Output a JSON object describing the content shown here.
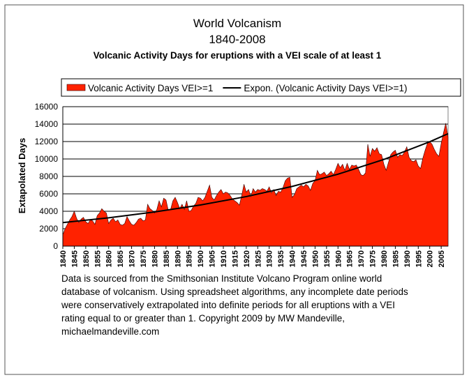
{
  "chart_data": {
    "type": "area",
    "title": "World Volcanism",
    "subtitle": "1840-2008",
    "subtitle2": "Volcanic Activity Days for eruptions with a VEI scale of at least 1",
    "y_label": "Extapolated Days",
    "note_lines": [
      "Data is sourced from the Smithsonian Institute Volcano Program online world",
      "database of volcanism.  Using spreadsheet algorithms, any incomplete date periods",
      "were conservatively extrapolated into definite periods for all eruptions with a VEI",
      "rating equal to or greater than 1. Copyright 2009 by MW Mandeville,",
      "michaelmandeville.com"
    ],
    "x": [
      1840,
      1841,
      1842,
      1843,
      1844,
      1845,
      1846,
      1847,
      1848,
      1849,
      1850,
      1851,
      1852,
      1853,
      1854,
      1855,
      1856,
      1857,
      1858,
      1859,
      1860,
      1861,
      1862,
      1863,
      1864,
      1865,
      1866,
      1867,
      1868,
      1869,
      1870,
      1871,
      1872,
      1873,
      1874,
      1875,
      1876,
      1877,
      1878,
      1879,
      1880,
      1881,
      1882,
      1883,
      1884,
      1885,
      1886,
      1887,
      1888,
      1889,
      1890,
      1891,
      1892,
      1893,
      1894,
      1895,
      1896,
      1897,
      1898,
      1899,
      1900,
      1901,
      1902,
      1903,
      1904,
      1905,
      1906,
      1907,
      1908,
      1909,
      1910,
      1911,
      1912,
      1913,
      1914,
      1915,
      1916,
      1917,
      1918,
      1919,
      1920,
      1921,
      1922,
      1923,
      1924,
      1925,
      1926,
      1927,
      1928,
      1929,
      1930,
      1931,
      1932,
      1933,
      1934,
      1935,
      1936,
      1937,
      1938,
      1939,
      1940,
      1941,
      1942,
      1943,
      1944,
      1945,
      1946,
      1947,
      1948,
      1949,
      1950,
      1951,
      1952,
      1953,
      1954,
      1955,
      1956,
      1957,
      1958,
      1959,
      1960,
      1961,
      1962,
      1963,
      1964,
      1965,
      1966,
      1967,
      1968,
      1969,
      1970,
      1971,
      1972,
      1973,
      1974,
      1975,
      1976,
      1977,
      1978,
      1979,
      1980,
      1981,
      1982,
      1983,
      1984,
      1985,
      1986,
      1987,
      1988,
      1989,
      1990,
      1991,
      1992,
      1993,
      1994,
      1995,
      1996,
      1997,
      1998,
      1999,
      2000,
      2001,
      2002,
      2003,
      2004,
      2005,
      2006,
      2007,
      2008
    ],
    "series": [
      {
        "name": "Volcanic Activity Days VEI>=1",
        "color": "#ff2200",
        "values": [
          1300,
          2000,
          2500,
          3000,
          3400,
          4000,
          3200,
          2700,
          3100,
          3300,
          2800,
          2600,
          3000,
          2900,
          2500,
          3500,
          3800,
          4300,
          4000,
          3800,
          2600,
          3000,
          3200,
          2800,
          3000,
          2500,
          2400,
          2600,
          3400,
          2900,
          2500,
          2400,
          2700,
          3100,
          3200,
          2900,
          3000,
          4800,
          4300,
          4100,
          3800,
          4200,
          5200,
          4500,
          5500,
          5300,
          4100,
          4200,
          5200,
          5600,
          5000,
          4300,
          4800,
          4200,
          5200,
          4000,
          4100,
          4600,
          4900,
          5600,
          5500,
          5200,
          5600,
          6300,
          7000,
          5600,
          5300,
          5800,
          6200,
          6500,
          6000,
          6200,
          6100,
          5800,
          5400,
          5200,
          5000,
          4700,
          5800,
          7100,
          6200,
          6500,
          5700,
          6600,
          6200,
          6500,
          6400,
          6600,
          6500,
          6300,
          6800,
          6100,
          6500,
          5800,
          6300,
          6200,
          6700,
          7500,
          7800,
          7900,
          5600,
          5900,
          6600,
          6800,
          7000,
          6800,
          7100,
          6900,
          6400,
          7200,
          7500,
          8700,
          8200,
          8300,
          8500,
          8100,
          8300,
          8600,
          8200,
          8800,
          9500,
          9000,
          9400,
          8700,
          9500,
          8800,
          9300,
          9200,
          9300,
          8800,
          8200,
          8100,
          8400,
          11700,
          10300,
          11200,
          10900,
          11300,
          10600,
          10500,
          9400,
          8700,
          9600,
          10500,
          10800,
          11000,
          10200,
          10500,
          10400,
          10800,
          11400,
          10200,
          9800,
          9700,
          9900,
          9200,
          8900,
          10100,
          11000,
          11800,
          12000,
          11700,
          11100,
          10600,
          10300,
          11800,
          13000,
          14100,
          12500
        ]
      },
      {
        "name": "Expon. (Volcanic Activity Days VEI>=1)",
        "color": "#000000",
        "type": "line",
        "x": [
          1840,
          1860,
          1880,
          1900,
          1920,
          1940,
          1960,
          1980,
          2000,
          2008
        ],
        "values": [
          2700,
          3252,
          3918,
          4720,
          5686,
          6850,
          8252,
          9941,
          11976,
          12900
        ]
      }
    ],
    "xlim": [
      1840,
      2008
    ],
    "xticks": [
      1840,
      1845,
      1850,
      1855,
      1860,
      1865,
      1870,
      1875,
      1880,
      1885,
      1890,
      1895,
      1900,
      1905,
      1910,
      1915,
      1920,
      1925,
      1930,
      1935,
      1940,
      1945,
      1950,
      1955,
      1960,
      1965,
      1970,
      1975,
      1980,
      1985,
      1990,
      1995,
      2000,
      2005
    ],
    "ylim": [
      0,
      16000
    ],
    "yticks": [
      0,
      2000,
      4000,
      6000,
      8000,
      10000,
      12000,
      14000,
      16000
    ],
    "grid": true
  }
}
